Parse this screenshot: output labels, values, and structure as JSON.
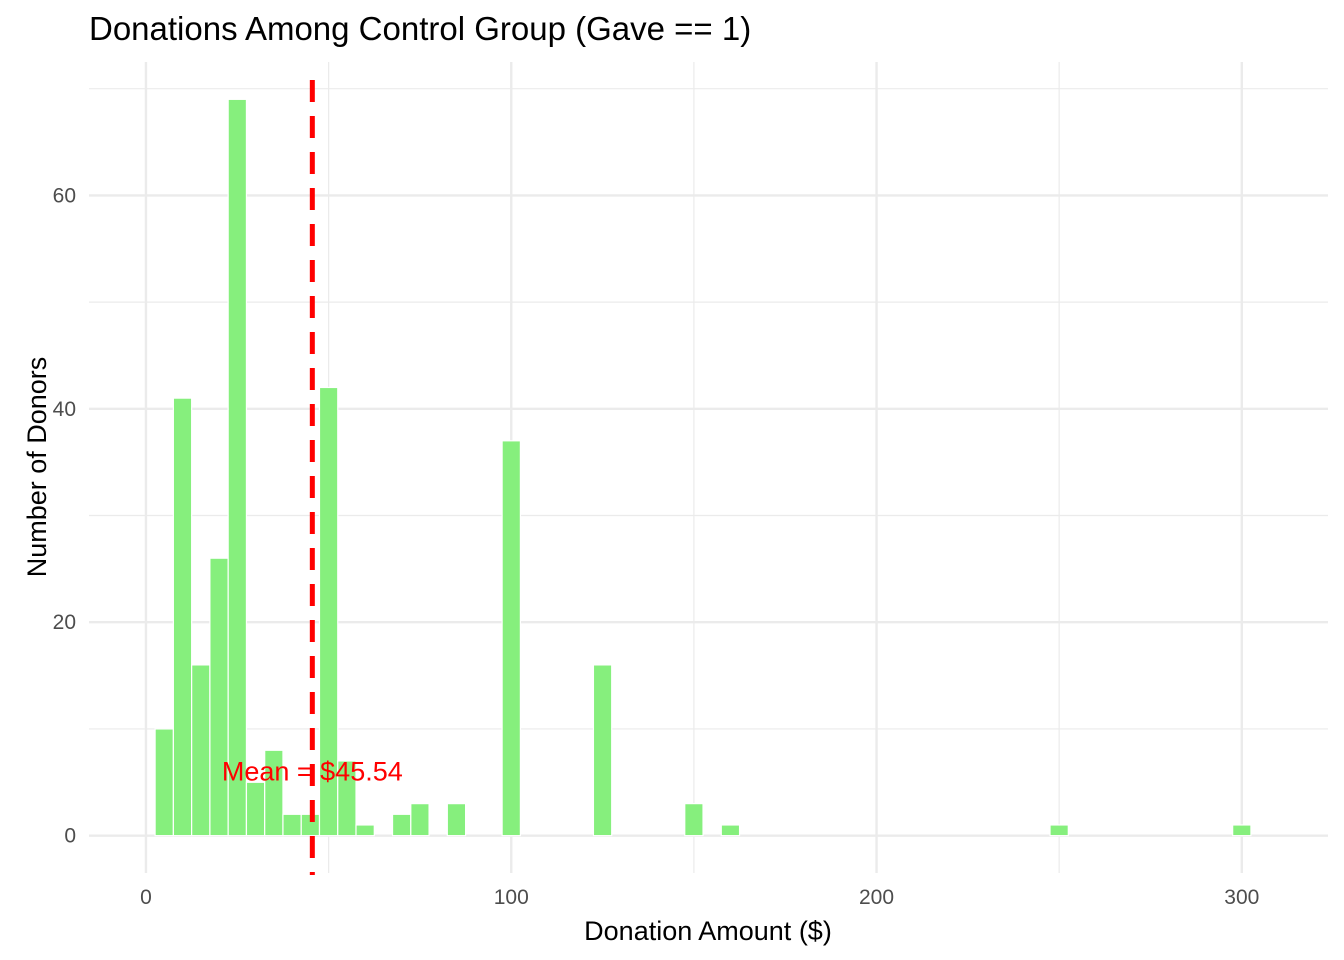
{
  "chart_data": {
    "type": "bar",
    "title": "Donations Among Control Group (Gave == 1)",
    "xlabel": "Donation Amount ($)",
    "ylabel": "Number of Donors",
    "xlim": [
      -15.6,
      323.6
    ],
    "ylim": [
      -3.5,
      72.5
    ],
    "x_ticks": [
      0,
      100,
      200,
      300
    ],
    "y_ticks": [
      0,
      20,
      40,
      60
    ],
    "bin_width": 5,
    "bins": [
      {
        "x": 5,
        "count": 10
      },
      {
        "x": 10,
        "count": 41
      },
      {
        "x": 15,
        "count": 16
      },
      {
        "x": 20,
        "count": 26
      },
      {
        "x": 25,
        "count": 69
      },
      {
        "x": 30,
        "count": 5
      },
      {
        "x": 35,
        "count": 8
      },
      {
        "x": 40,
        "count": 2
      },
      {
        "x": 45,
        "count": 2
      },
      {
        "x": 50,
        "count": 42
      },
      {
        "x": 55,
        "count": 7
      },
      {
        "x": 60,
        "count": 1
      },
      {
        "x": 70,
        "count": 2
      },
      {
        "x": 75,
        "count": 3
      },
      {
        "x": 85,
        "count": 3
      },
      {
        "x": 100,
        "count": 37
      },
      {
        "x": 125,
        "count": 16
      },
      {
        "x": 150,
        "count": 3
      },
      {
        "x": 160,
        "count": 1
      },
      {
        "x": 250,
        "count": 1
      },
      {
        "x": 300,
        "count": 1
      }
    ],
    "mean_line": {
      "value": 45.54,
      "label": "Mean = $45.54",
      "color": "#ff0000",
      "style": "dashed"
    },
    "bar_color": "#86ef7d",
    "grid": true,
    "legend": "none"
  }
}
